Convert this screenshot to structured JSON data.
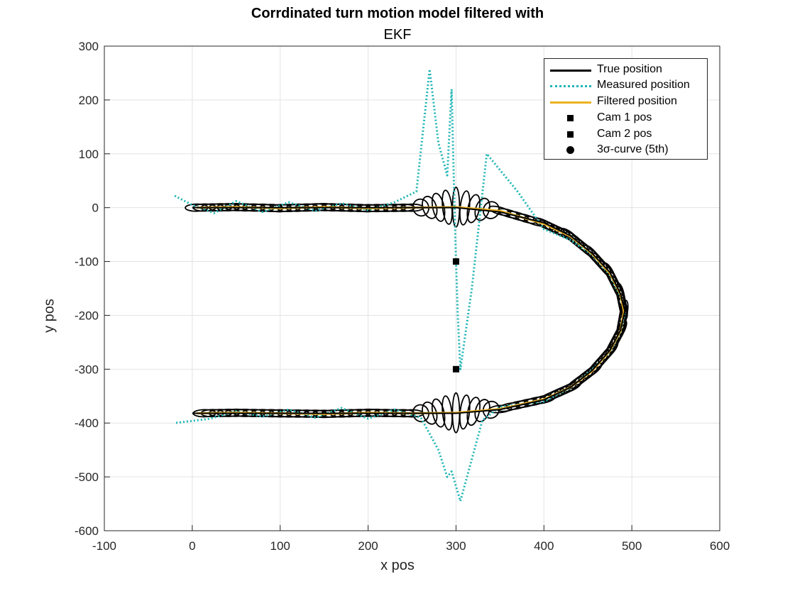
{
  "chart_data": {
    "type": "line",
    "title": "Corrdinated turn motion model filtered with",
    "subtitle": "EKF",
    "xlabel": "x pos",
    "ylabel": "y pos",
    "xlim": [
      -100,
      600
    ],
    "ylim": [
      -600,
      300
    ],
    "xticks": [
      -100,
      0,
      100,
      200,
      300,
      400,
      500,
      600
    ],
    "yticks": [
      -600,
      -500,
      -400,
      -300,
      -200,
      -100,
      0,
      100,
      200,
      300
    ],
    "grid": true,
    "legend_position": "top-right",
    "colors": {
      "true": "#000000",
      "measured": "#1fb5b5",
      "filtered": "#edb120",
      "ellipse": "#000000"
    },
    "series": [
      {
        "name": "True position",
        "style": "solid",
        "x": [
          0,
          50,
          100,
          150,
          200,
          250,
          300,
          350,
          400,
          430,
          455,
          475,
          487,
          492,
          487,
          475,
          455,
          430,
          400,
          350,
          300,
          250,
          200,
          150,
          100,
          50,
          0
        ],
        "y": [
          0,
          0,
          0,
          0,
          0,
          0,
          0,
          -8,
          -28,
          -52,
          -85,
          -120,
          -160,
          -192,
          -228,
          -265,
          -302,
          -334,
          -357,
          -375,
          -382,
          -382,
          -382,
          -382,
          -382,
          -382,
          -382
        ]
      },
      {
        "name": "Measured position",
        "style": "dotted",
        "x": [
          -20,
          0,
          25,
          50,
          80,
          110,
          140,
          170,
          200,
          230,
          255,
          270,
          280,
          290,
          295,
          298,
          300,
          302,
          305,
          318,
          335,
          370,
          400,
          430,
          455,
          475,
          487,
          492,
          487,
          475,
          455,
          430,
          400,
          350,
          330,
          305,
          295,
          290,
          280,
          260,
          230,
          200,
          170,
          140,
          110,
          80,
          50,
          20,
          -20
        ],
        "y": [
          22,
          5,
          -10,
          12,
          -8,
          10,
          -6,
          8,
          -5,
          10,
          30,
          257,
          120,
          60,
          220,
          20,
          -100,
          -200,
          -300,
          -150,
          100,
          30,
          -40,
          -60,
          -88,
          -125,
          -165,
          -195,
          -230,
          -268,
          -300,
          -335,
          -360,
          -370,
          -395,
          -545,
          -490,
          -500,
          -450,
          -390,
          -375,
          -392,
          -372,
          -390,
          -375,
          -388,
          -378,
          -392,
          -400
        ]
      },
      {
        "name": "Filtered position",
        "style": "solid",
        "x": [
          5,
          50,
          100,
          150,
          200,
          250,
          300,
          350,
          400,
          430,
          455,
          475,
          487,
          491,
          487,
          475,
          455,
          430,
          400,
          350,
          300,
          250,
          200,
          150,
          100,
          50,
          5
        ],
        "y": [
          0,
          1,
          -1,
          1,
          -1,
          0,
          1,
          -6,
          -30,
          -53,
          -86,
          -122,
          -161,
          -193,
          -229,
          -266,
          -303,
          -334,
          -356,
          -374,
          -381,
          -382,
          -381,
          -383,
          -382,
          -381,
          -382
        ]
      }
    ],
    "points": [
      {
        "name": "Cam 1 pos",
        "x": 300,
        "y": -100,
        "marker": "square"
      },
      {
        "name": "Cam 2 pos",
        "x": 300,
        "y": -300,
        "marker": "square"
      }
    ],
    "ellipse_series_name": "3σ-curve (5th)",
    "legend": [
      {
        "label": "True position"
      },
      {
        "label": "Measured position"
      },
      {
        "label": "Filtered position"
      },
      {
        "label": "Cam 1 pos"
      },
      {
        "label": "Cam 2 pos"
      },
      {
        "label": "3σ-curve (5th)"
      }
    ]
  }
}
